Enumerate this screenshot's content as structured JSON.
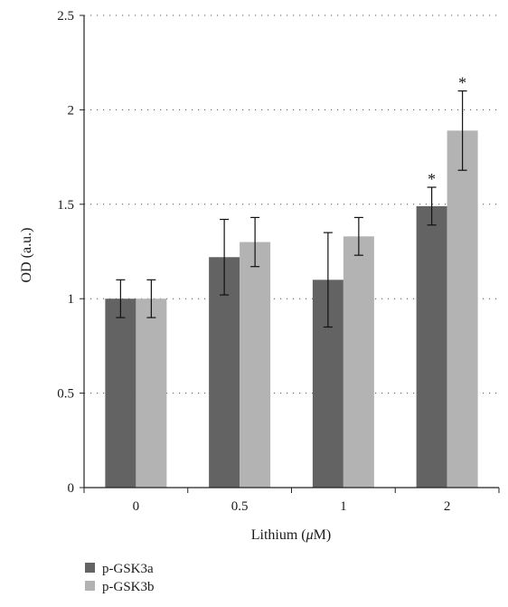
{
  "chart_data": {
    "type": "bar",
    "title": "",
    "xlabel_prefix": "Lithium (",
    "xlabel_unit_symbol": "μ",
    "xlabel_suffix": "M)",
    "ylabel": "OD (a.u.)",
    "categories": [
      "0",
      "0.5",
      "1",
      "2"
    ],
    "ylim": [
      0,
      2.5
    ],
    "yticks": [
      0,
      0.5,
      1,
      1.5,
      2,
      2.5
    ],
    "ytick_labels": [
      "0",
      "0.5",
      "1",
      "1.5",
      "2",
      "2.5"
    ],
    "grid": "dotted horizontal",
    "legend_position": "bottom-left",
    "series": [
      {
        "name": "p-GSK3a",
        "color": "#636363",
        "values": [
          1.0,
          1.22,
          1.1,
          1.49
        ],
        "errors": [
          0.1,
          0.2,
          0.25,
          0.1
        ],
        "significance": [
          "",
          "",
          "",
          "*"
        ]
      },
      {
        "name": "p-GSK3b",
        "color": "#b3b3b3",
        "values": [
          1.0,
          1.3,
          1.33,
          1.89
        ],
        "errors": [
          0.1,
          0.13,
          0.1,
          0.21
        ],
        "significance": [
          "",
          "",
          "",
          "*"
        ]
      }
    ]
  }
}
